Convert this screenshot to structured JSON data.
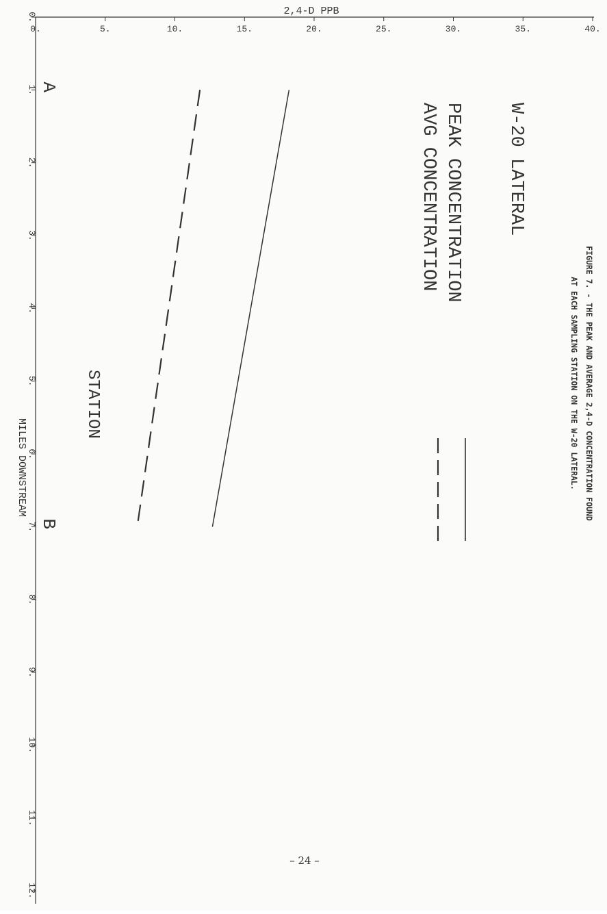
{
  "page_number": "– 24 –",
  "chart_data": {
    "type": "line",
    "caption": [
      "FIGURE 7. - THE PEAK AND AVERAGE 2,4-D CONCENTRATION FOUND",
      "AT EACH SAMPLING STATION ON THE W-20 LATERAL."
    ],
    "title": "W-20 LATERAL",
    "xlabel": "MILES DOWNSTREAM",
    "ylabel": "2,4-D PPB",
    "x_ticks": [
      "0.",
      "1.",
      "2.",
      "3.",
      "4.",
      "5.",
      "6.",
      "7.",
      "8.",
      "9.",
      "10.",
      "11.",
      "12."
    ],
    "y_ticks": [
      "0.",
      "5.",
      "10.",
      "15.",
      "20.",
      "25.",
      "30.",
      "35.",
      "40."
    ],
    "xlim": [
      0,
      12
    ],
    "ylim": [
      0,
      40
    ],
    "grid": false,
    "legend_placement": "upper",
    "series": [
      {
        "name": "PEAK CONCENTRATION",
        "style": "solid",
        "x": [
          1,
          7
        ],
        "y": [
          18.2,
          12.7
        ]
      },
      {
        "name": "AVG CONCENTRATION",
        "style": "dashed",
        "x": [
          1,
          7
        ],
        "y": [
          11.8,
          7.3
        ]
      }
    ],
    "station_markers": [
      {
        "label": "A",
        "x": 1.0
      },
      {
        "label": "B",
        "x": 7.0
      }
    ],
    "station_label": "STATION",
    "color": "#333333"
  }
}
